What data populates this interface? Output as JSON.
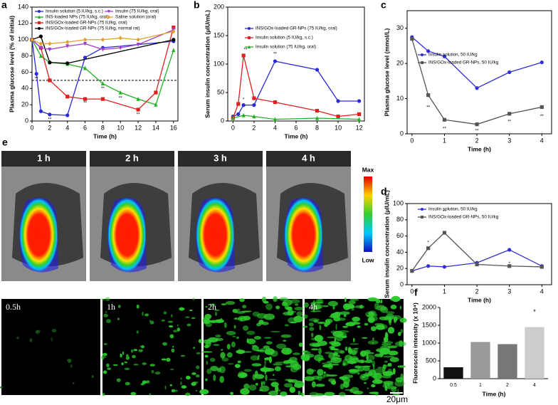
{
  "chart_data": [
    {
      "type": "line",
      "label": "a",
      "xlabel": "Time (h)",
      "ylabel": "Plasma glucose level (% of initial)",
      "xlim": [
        0,
        16.5
      ],
      "xticks": [
        0,
        2,
        4,
        6,
        8,
        10,
        12,
        14,
        16
      ],
      "ylim": [
        0,
        140
      ],
      "yticks": [
        0,
        20,
        40,
        60,
        80,
        100,
        120,
        140
      ],
      "hline": 50,
      "legend": "upper left",
      "series": [
        {
          "name": "Insulin solution (5 IU/kg, s.c.)",
          "color": "#2a2ad8",
          "marker": "circle",
          "x": [
            0,
            0.5,
            1,
            2,
            4,
            6,
            8,
            16
          ],
          "values": [
            100,
            58,
            12,
            8,
            7,
            78,
            90,
            98
          ]
        },
        {
          "name": "INS-loaded NPs (75 IU/kg, oral)",
          "color": "#22b022",
          "marker": "triangle",
          "x": [
            0,
            1,
            2,
            4,
            6,
            8,
            10,
            12,
            14,
            16
          ],
          "values": [
            100,
            80,
            72,
            70,
            65,
            46,
            35,
            27,
            20,
            87
          ]
        },
        {
          "name": "INS/GOx-loaded GR-NPs (75 IU/kg, oral)",
          "color": "#e02020",
          "marker": "square",
          "x": [
            0,
            1,
            2,
            4,
            6,
            8,
            12,
            14,
            16
          ],
          "values": [
            100,
            90,
            50,
            30,
            27,
            27,
            14,
            35,
            115
          ]
        },
        {
          "name": "INS/GOx-loaded GR-NPs (75 IU/kg, normal rat)",
          "color": "#000000",
          "marker": "circle",
          "x": [
            0,
            1,
            2,
            4,
            16
          ],
          "values": [
            100,
            104,
            72,
            71,
            100
          ]
        },
        {
          "name": "Insulin (75 IU/kg, oral)",
          "color": "#a040d0",
          "marker": "triangle-down",
          "x": [
            0,
            1,
            2,
            4,
            6,
            8,
            10,
            12,
            16
          ],
          "values": [
            100,
            90,
            88,
            92,
            95,
            88,
            90,
            94,
            112
          ]
        },
        {
          "name": "Saline solution (oral)",
          "color": "#e0a030",
          "marker": "diamond",
          "x": [
            0,
            1,
            2,
            4,
            6,
            8,
            10,
            12,
            16
          ],
          "values": [
            100,
            95,
            95,
            97,
            100,
            100,
            102,
            100,
            110
          ]
        }
      ],
      "annotations": [
        {
          "text": "**",
          "x": 0.5,
          "y": 52
        },
        {
          "text": "**",
          "x": 2,
          "y": 2
        },
        {
          "text": "**",
          "x": 6,
          "y": 22
        },
        {
          "text": "**",
          "x": 8,
          "y": 40
        },
        {
          "text": "**",
          "x": 10,
          "y": 28
        },
        {
          "text": "**",
          "x": 12,
          "y": 8
        }
      ]
    },
    {
      "type": "line",
      "label": "b",
      "xlabel": "Time (h)",
      "ylabel": "Serum insulin concentration (μIU/mL)",
      "xlim": [
        -0.5,
        12.5
      ],
      "xticks": [
        0,
        2,
        4,
        6,
        8,
        10,
        12
      ],
      "ylim": [
        0,
        200
      ],
      "yticks": [
        0,
        50,
        100,
        150,
        200
      ],
      "legend": "upper right",
      "series": [
        {
          "name": "INS/GOx-loaded GR-NPs (75 IU/kg, oral)",
          "color": "#2a2ad8",
          "marker": "circle",
          "x": [
            0,
            0.5,
            1,
            2,
            4,
            8,
            10,
            12
          ],
          "values": [
            8,
            12,
            28,
            28,
            105,
            90,
            35,
            35
          ]
        },
        {
          "name": "Insulin solution (5 IU/kg, s.c.)",
          "color": "#e02020",
          "marker": "square",
          "x": [
            0,
            0.5,
            1,
            2,
            4,
            8,
            10,
            12
          ],
          "values": [
            5,
            30,
            115,
            40,
            33,
            18,
            8,
            12
          ]
        },
        {
          "name": "Insulin solution (75 IU/kg, oral)",
          "color": "#22b022",
          "marker": "triangle",
          "x": [
            0,
            1,
            2,
            4,
            8,
            12
          ],
          "values": [
            5,
            10,
            8,
            3,
            5,
            3
          ]
        }
      ],
      "annotations": [
        {
          "text": "**",
          "x": 1.2,
          "y": 125
        },
        {
          "text": "**",
          "x": 4,
          "y": 118
        },
        {
          "text": "*",
          "x": 1,
          "y": 38
        }
      ]
    },
    {
      "type": "line",
      "label": "c",
      "xlabel": "Time (h)",
      "ylabel": "Plasma glucose level (mmol/L)",
      "xlim": [
        -0.15,
        4.3
      ],
      "xticks": [
        0,
        1,
        2,
        3,
        4
      ],
      "ylim": [
        0,
        35
      ],
      "yticks": [
        0,
        10,
        20,
        30
      ],
      "legend": "upper right",
      "series": [
        {
          "name": "Insulin solution, 50 IU/kg",
          "color": "#3030d0",
          "marker": "circle",
          "x": [
            0,
            0.5,
            1,
            2,
            3,
            4
          ],
          "values": [
            27.5,
            23.5,
            22,
            13,
            17.5,
            20.3
          ]
        },
        {
          "name": "INS/GOx-loaded GR-NPs, 50 IU/kg",
          "color": "#555555",
          "marker": "square",
          "x": [
            0,
            0.5,
            1,
            2,
            3,
            4
          ],
          "values": [
            27,
            11,
            4,
            2.7,
            5.7,
            7.6
          ]
        }
      ],
      "annotations": [
        {
          "text": "**",
          "x": 0.5,
          "y": 7.5
        },
        {
          "text": "**",
          "x": 1,
          "y": 1.5
        },
        {
          "text": "**",
          "x": 2,
          "y": 0.8
        },
        {
          "text": "**",
          "x": 3,
          "y": 3.5
        },
        {
          "text": "**",
          "x": 4,
          "y": 5
        }
      ]
    },
    {
      "type": "line",
      "label": "d",
      "xlabel": "Time (h)",
      "ylabel": "Serum insulin concentration (μIU/mL)",
      "xlim": [
        -0.15,
        4.3
      ],
      "xticks": [
        0,
        1,
        2,
        3,
        4
      ],
      "ylim": [
        0,
        100
      ],
      "yticks": [
        0,
        20,
        40,
        60,
        80,
        100
      ],
      "legend": "upper right",
      "series": [
        {
          "name": "Insulin solution, 50 IU/kg",
          "color": "#3030d0",
          "marker": "circle",
          "x": [
            0,
            0.5,
            1,
            2,
            3,
            4
          ],
          "values": [
            17,
            23,
            22,
            27,
            43,
            23
          ]
        },
        {
          "name": "INS/GOx-loaded GR-NPs, 50 IU/kg",
          "color": "#555555",
          "marker": "square",
          "x": [
            0,
            0.5,
            1,
            2,
            3,
            4
          ],
          "values": [
            17,
            45,
            64,
            25,
            23,
            22
          ]
        }
      ],
      "annotations": [
        {
          "text": "*",
          "x": 0.5,
          "y": 52
        },
        {
          "text": "**",
          "x": 1,
          "y": 90
        },
        {
          "text": "*",
          "x": 3,
          "y": 26
        }
      ]
    },
    {
      "type": "bar",
      "label": "f",
      "xlabel": "Time (h)",
      "ylabel": "Fluorescein intensity (x 10⁴)",
      "categories": [
        "0.5",
        "1",
        "2",
        "4"
      ],
      "values": [
        320,
        1030,
        970,
        1450
      ],
      "colors": [
        "#111111",
        "#999999",
        "#777777",
        "#cccccc"
      ],
      "ylim": [
        0,
        2000
      ],
      "yticks": [
        0,
        500,
        1000,
        1500,
        2000
      ],
      "annotations": [
        {
          "text": "*",
          "x": 3,
          "y": 1870
        }
      ]
    }
  ],
  "image_panels": {
    "e": {
      "label": "e",
      "captions": [
        "1 h",
        "2 h",
        "3 h",
        "4 h"
      ],
      "colorbar": [
        "Max",
        "Low"
      ]
    },
    "f": {
      "captions": [
        "0.5h",
        "1h",
        "2h",
        "4h"
      ],
      "scale_bar": "20μm"
    }
  }
}
